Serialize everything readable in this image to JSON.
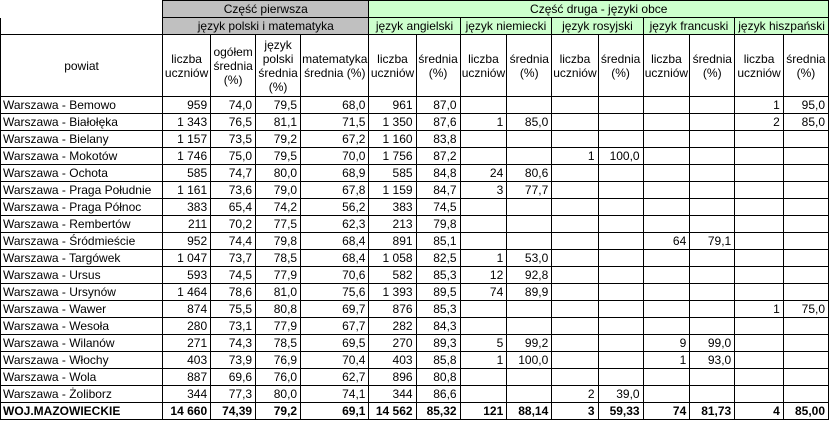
{
  "header": {
    "part1": "Część pierwsza",
    "part2": "Część druga - języki obce",
    "group_pm": "język polski i matematyka",
    "languages": [
      "język angielski",
      "język niemiecki",
      "język rosyjski",
      "język francuski",
      "język hiszpański"
    ],
    "powiat": "powiat",
    "col_count": "liczba uczniów",
    "col_total": "ogółem średnia (%)",
    "col_polish": "język polski średnia (%)",
    "col_math": "matematyka średnia (%)",
    "col_avg": "średnia (%)"
  },
  "colors": {
    "part1_bg": "#c0c0c0",
    "part2_bg": "#cdffcd"
  },
  "rows": [
    [
      "Warszawa - Bemowo",
      "959",
      "74,0",
      "79,5",
      "68,0",
      "961",
      "87,0",
      "",
      "",
      "",
      "",
      "",
      "",
      "1",
      "95,0"
    ],
    [
      "Warszawa - Białołęka",
      "1 343",
      "76,5",
      "81,1",
      "71,5",
      "1 350",
      "87,6",
      "1",
      "85,0",
      "",
      "",
      "",
      "",
      "2",
      "85,0"
    ],
    [
      "Warszawa - Bielany",
      "1 157",
      "73,5",
      "79,2",
      "67,2",
      "1 160",
      "83,8",
      "",
      "",
      "",
      "",
      "",
      "",
      "",
      ""
    ],
    [
      "Warszawa - Mokotów",
      "1 746",
      "75,0",
      "79,5",
      "70,0",
      "1 756",
      "87,2",
      "",
      "",
      "1",
      "100,0",
      "",
      "",
      "",
      ""
    ],
    [
      "Warszawa - Ochota",
      "585",
      "74,7",
      "80,0",
      "68,9",
      "585",
      "84,8",
      "24",
      "80,6",
      "",
      "",
      "",
      "",
      "",
      ""
    ],
    [
      "Warszawa - Praga Południe",
      "1 161",
      "73,6",
      "79,0",
      "67,8",
      "1 159",
      "84,7",
      "3",
      "77,7",
      "",
      "",
      "",
      "",
      "",
      ""
    ],
    [
      "Warszawa - Praga Północ",
      "383",
      "65,4",
      "74,2",
      "56,2",
      "383",
      "74,5",
      "",
      "",
      "",
      "",
      "",
      "",
      "",
      ""
    ],
    [
      "Warszawa - Rembertów",
      "211",
      "70,2",
      "77,5",
      "62,3",
      "213",
      "79,8",
      "",
      "",
      "",
      "",
      "",
      "",
      "",
      ""
    ],
    [
      "Warszawa - Śródmieście",
      "952",
      "74,4",
      "79,8",
      "68,4",
      "891",
      "85,1",
      "",
      "",
      "",
      "",
      "64",
      "79,1",
      "",
      ""
    ],
    [
      "Warszawa - Targówek",
      "1 047",
      "73,7",
      "78,5",
      "68,4",
      "1 058",
      "82,5",
      "1",
      "53,0",
      "",
      "",
      "",
      "",
      "",
      ""
    ],
    [
      "Warszawa - Ursus",
      "593",
      "74,5",
      "77,9",
      "70,6",
      "582",
      "85,3",
      "12",
      "92,8",
      "",
      "",
      "",
      "",
      "",
      ""
    ],
    [
      "Warszawa - Ursynów",
      "1 464",
      "78,6",
      "81,0",
      "75,6",
      "1 393",
      "89,5",
      "74",
      "89,9",
      "",
      "",
      "",
      "",
      "",
      ""
    ],
    [
      "Warszawa - Wawer",
      "874",
      "75,5",
      "80,8",
      "69,7",
      "876",
      "85,3",
      "",
      "",
      "",
      "",
      "",
      "",
      "1",
      "75,0"
    ],
    [
      "Warszawa - Wesoła",
      "280",
      "73,1",
      "77,9",
      "67,7",
      "282",
      "84,3",
      "",
      "",
      "",
      "",
      "",
      "",
      "",
      ""
    ],
    [
      "Warszawa - Wilanów",
      "271",
      "74,3",
      "78,5",
      "69,5",
      "270",
      "89,3",
      "5",
      "99,2",
      "",
      "",
      "9",
      "99,0",
      "",
      ""
    ],
    [
      "Warszawa - Włochy",
      "403",
      "73,9",
      "76,9",
      "70,4",
      "403",
      "85,8",
      "1",
      "100,0",
      "",
      "",
      "1",
      "93,0",
      "",
      ""
    ],
    [
      "Warszawa - Wola",
      "887",
      "69,6",
      "76,0",
      "62,7",
      "896",
      "80,8",
      "",
      "",
      "",
      "",
      "",
      "",
      "",
      ""
    ],
    [
      "Warszawa - Żoliborz",
      "344",
      "77,3",
      "80,0",
      "74,1",
      "344",
      "86,6",
      "",
      "",
      "2",
      "39,0",
      "",
      "",
      "",
      ""
    ]
  ],
  "total": [
    "WOJ.MAZOWIECKIE",
    "14 660",
    "74,39",
    "79,2",
    "69,1",
    "14 562",
    "85,32",
    "121",
    "88,14",
    "3",
    "59,33",
    "74",
    "81,73",
    "4",
    "85,00"
  ]
}
